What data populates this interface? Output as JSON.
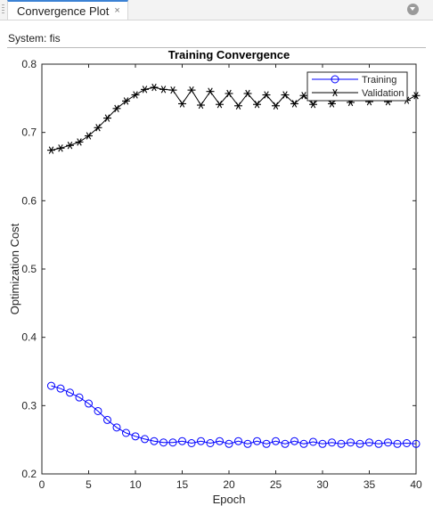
{
  "tab": {
    "title": "Convergence Plot",
    "close_glyph": "×"
  },
  "system_label": "System: fis",
  "chart_data": {
    "type": "line",
    "title": "Training Convergence",
    "xlabel": "Epoch",
    "ylabel": "Optimization Cost",
    "xlim": [
      0,
      40
    ],
    "ylim": [
      0.2,
      0.8
    ],
    "xticks": [
      0,
      5,
      10,
      15,
      20,
      25,
      30,
      35,
      40
    ],
    "yticks": [
      0.2,
      0.3,
      0.4,
      0.5,
      0.6,
      0.7,
      0.8
    ],
    "grid": false,
    "legend_position": "top-right",
    "x": [
      1,
      2,
      3,
      4,
      5,
      6,
      7,
      8,
      9,
      10,
      11,
      12,
      13,
      14,
      15,
      16,
      17,
      18,
      19,
      20,
      21,
      22,
      23,
      24,
      25,
      26,
      27,
      28,
      29,
      30,
      31,
      32,
      33,
      34,
      35,
      36,
      37,
      38,
      39,
      40
    ],
    "series": [
      {
        "name": "Training",
        "color": "#0000ff",
        "marker": "circle",
        "values": [
          0.329,
          0.325,
          0.319,
          0.312,
          0.303,
          0.292,
          0.279,
          0.268,
          0.26,
          0.255,
          0.251,
          0.248,
          0.246,
          0.246,
          0.248,
          0.245,
          0.248,
          0.245,
          0.248,
          0.244,
          0.248,
          0.244,
          0.248,
          0.244,
          0.248,
          0.244,
          0.248,
          0.244,
          0.247,
          0.244,
          0.246,
          0.244,
          0.246,
          0.244,
          0.246,
          0.244,
          0.246,
          0.244,
          0.245,
          0.244
        ]
      },
      {
        "name": "Validation",
        "color": "#000000",
        "marker": "asterisk",
        "values": [
          0.674,
          0.677,
          0.681,
          0.686,
          0.695,
          0.707,
          0.721,
          0.735,
          0.746,
          0.755,
          0.763,
          0.766,
          0.763,
          0.762,
          0.742,
          0.762,
          0.74,
          0.76,
          0.741,
          0.757,
          0.739,
          0.757,
          0.741,
          0.755,
          0.739,
          0.755,
          0.742,
          0.754,
          0.741,
          0.754,
          0.742,
          0.754,
          0.744,
          0.754,
          0.745,
          0.754,
          0.745,
          0.754,
          0.747,
          0.754
        ]
      }
    ]
  }
}
